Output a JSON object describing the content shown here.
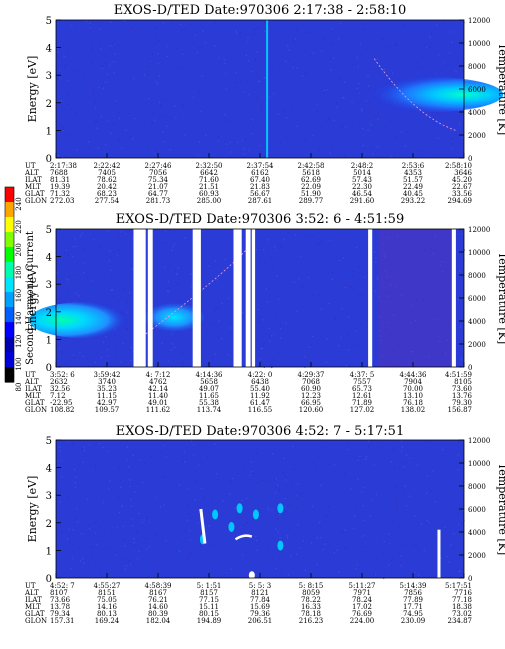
{
  "colorbar": {
    "label": "Second Harmonic Current",
    "ticks": [
      "240",
      "220",
      "200",
      "180",
      "160",
      "140",
      "120",
      "100",
      "80"
    ],
    "colors": [
      "#ff0000",
      "#ffa500",
      "#ffff00",
      "#7fff00",
      "#00ff00",
      "#00ffaa",
      "#00e5ff",
      "#00a0ff",
      "#0060ff",
      "#0000ff",
      "#0000b0",
      "#0000d8",
      "#000000"
    ]
  },
  "chart_data": [
    {
      "type": "heatmap",
      "title": "EXOS-D/TED  Date:970306  2:17:38 - 2:58:10",
      "ylabel": "Energy [eV]",
      "y2label": "Temperature [K]",
      "ylim": [
        0,
        5
      ],
      "y2lim": [
        0,
        12000
      ],
      "yticks": [
        "0",
        "1",
        "2",
        "3",
        "4",
        "5"
      ],
      "y2ticks": [
        "0",
        "2000",
        "4000",
        "6000",
        "8000",
        "10000",
        "12000"
      ],
      "row_labels": [
        "UT",
        "ALT",
        "ILAT",
        "MLT",
        "GLAT",
        "GLON"
      ],
      "columns": [
        [
          "2:17:38",
          "7688",
          "81.31",
          "19.39",
          "71.32",
          "272.03"
        ],
        [
          "2:22:42",
          "7405",
          "78.62",
          "20.42",
          "68.23",
          "277.54"
        ],
        [
          "2:27:46",
          "7056",
          "75.34",
          "21.07",
          "64.77",
          "281.73"
        ],
        [
          "2:32:50",
          "6642",
          "71.60",
          "21.51",
          "60.93",
          "285.00"
        ],
        [
          "2:37:54",
          "6162",
          "67.40",
          "21.83",
          "56.67",
          "287.61"
        ],
        [
          "2:42:58",
          "5618",
          "62.69",
          "22.09",
          "51.90",
          "289.77"
        ],
        [
          "2:48:2",
          "5014",
          "57.43",
          "22.30",
          "46.54",
          "291.60"
        ],
        [
          "2:53:6",
          "4353",
          "51.57",
          "22.49",
          "40.45",
          "293.22"
        ],
        [
          "2:58:10",
          "3646",
          "45.20",
          "22.67",
          "33.56",
          "294.69"
        ]
      ]
    },
    {
      "type": "heatmap",
      "title": "EXOS-D/TED  Date:970306  3:52: 6 - 4:51:59",
      "ylabel": "Energy [eV]",
      "y2label": "Temperature [K]",
      "ylim": [
        0,
        5
      ],
      "y2lim": [
        0,
        12000
      ],
      "yticks": [
        "0",
        "1",
        "2",
        "3",
        "4",
        "5"
      ],
      "y2ticks": [
        "0",
        "2000",
        "4000",
        "6000",
        "8000",
        "10000",
        "12000"
      ],
      "row_labels": [
        "UT",
        "ALT",
        "ILAT",
        "MLT",
        "GLAT",
        "GLON"
      ],
      "columns": [
        [
          "3:52: 6",
          "2632",
          "32.56",
          "7.12",
          "-22.95",
          "108.82"
        ],
        [
          "3:59:42",
          "3740",
          "35.23",
          "11.15",
          "42.97",
          "109.57"
        ],
        [
          "4: 7:12",
          "4762",
          "42.14",
          "11.40",
          "49.01",
          "111.62"
        ],
        [
          "4:14:36",
          "5658",
          "49.07",
          "11.65",
          "55.38",
          "113.74"
        ],
        [
          "4:22: 0",
          "6438",
          "55.40",
          "11.92",
          "61.47",
          "116.55"
        ],
        [
          "4:29:37",
          "7068",
          "60.90",
          "12.23",
          "66.95",
          "120.60"
        ],
        [
          "4:37: 5",
          "7557",
          "65.73",
          "12.61",
          "71.89",
          "127.02"
        ],
        [
          "4:44:36",
          "7904",
          "70.00",
          "13.10",
          "76.18",
          "138.02"
        ],
        [
          "4:51:59",
          "8105",
          "73.60",
          "13.76",
          "79.30",
          "156.87"
        ]
      ]
    },
    {
      "type": "heatmap",
      "title": "EXOS-D/TED  Date:970306  4:52: 7 - 5:17:51",
      "ylabel": "Energy [eV]",
      "y2label": "Temperature [K]",
      "ylim": [
        0,
        5
      ],
      "y2lim": [
        0,
        12000
      ],
      "yticks": [
        "0",
        "1",
        "2",
        "3",
        "4",
        "5"
      ],
      "y2ticks": [
        "0",
        "2000",
        "4000",
        "6000",
        "8000",
        "10000",
        "12000"
      ],
      "row_labels": [
        "UT",
        "ALT",
        "ILAT",
        "MLT",
        "GLAT",
        "GLON"
      ],
      "columns": [
        [
          "4:52: 7",
          "8107",
          "73.66",
          "13.78",
          "79.34",
          "157.31"
        ],
        [
          "4:55:27",
          "8151",
          "75.05",
          "14.16",
          "80.13",
          "169.24"
        ],
        [
          "4:58:39",
          "8167",
          "76.21",
          "14.60",
          "80.39",
          "182.04"
        ],
        [
          "5: 1:51",
          "8157",
          "77.15",
          "15.11",
          "80.15",
          "194.89"
        ],
        [
          "5: 5: 3",
          "8121",
          "77.84",
          "15.69",
          "79.36",
          "206.51"
        ],
        [
          "5: 8:15",
          "8059",
          "78.22",
          "16.33",
          "78.18",
          "216.23"
        ],
        [
          "5:11:27",
          "7971",
          "78.24",
          "17.02",
          "76.69",
          "224.00"
        ],
        [
          "5:14:39",
          "7856",
          "77.89",
          "17.71",
          "74.95",
          "230.09"
        ],
        [
          "5:17:51",
          "7716",
          "77.18",
          "18.38",
          "73.02",
          "234.87"
        ]
      ]
    }
  ]
}
